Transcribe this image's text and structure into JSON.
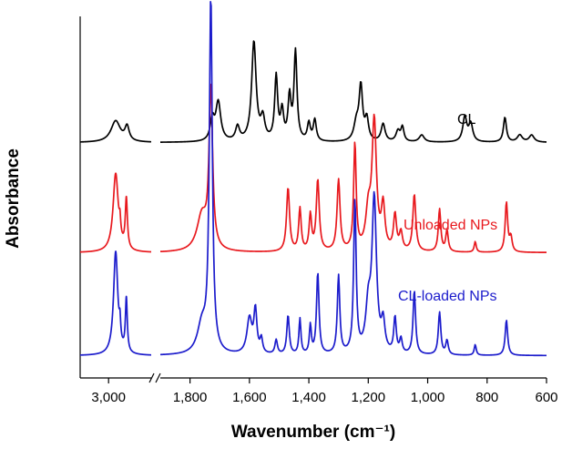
{
  "chart_data": {
    "type": "line",
    "title": "",
    "xlabel": "Wavenumber (cm⁻¹)",
    "ylabel": "Absorbance",
    "x_direction": "descending",
    "axis_break": {
      "between": [
        2700,
        1900
      ]
    },
    "segments": [
      {
        "name": "left",
        "xlim": [
          3200,
          2700
        ]
      },
      {
        "name": "right",
        "xlim": [
          1900,
          600
        ]
      }
    ],
    "x_ticks": [
      {
        "value": 3000,
        "label": "3,000"
      },
      {
        "value": 1800,
        "label": "1,800"
      },
      {
        "value": 1600,
        "label": "1,600"
      },
      {
        "value": 1400,
        "label": "1,400"
      },
      {
        "value": 1200,
        "label": "1,200"
      },
      {
        "value": 1000,
        "label": "1,000"
      },
      {
        "value": 800,
        "label": "800"
      },
      {
        "value": 600,
        "label": "600"
      }
    ],
    "y_units": "arbitrary, stacked with offsets",
    "ylim": [
      0,
      1
    ],
    "series": [
      {
        "name": "CL",
        "label": "CL",
        "color": "#000000",
        "baseline": 0.65,
        "peaks": [
          {
            "x": 2950,
            "h": 0.06,
            "w": 40
          },
          {
            "x": 2870,
            "h": 0.04,
            "w": 18
          },
          {
            "x": 1725,
            "h": 0.06,
            "w": 8
          },
          {
            "x": 1705,
            "h": 0.11,
            "w": 10
          },
          {
            "x": 1640,
            "h": 0.04,
            "w": 8
          },
          {
            "x": 1585,
            "h": 0.28,
            "w": 9
          },
          {
            "x": 1555,
            "h": 0.06,
            "w": 8
          },
          {
            "x": 1510,
            "h": 0.18,
            "w": 6
          },
          {
            "x": 1490,
            "h": 0.08,
            "w": 6
          },
          {
            "x": 1465,
            "h": 0.12,
            "w": 6
          },
          {
            "x": 1445,
            "h": 0.25,
            "w": 6
          },
          {
            "x": 1400,
            "h": 0.05,
            "w": 6
          },
          {
            "x": 1380,
            "h": 0.06,
            "w": 6
          },
          {
            "x": 1240,
            "h": 0.05,
            "w": 10
          },
          {
            "x": 1225,
            "h": 0.15,
            "w": 7
          },
          {
            "x": 1205,
            "h": 0.06,
            "w": 7
          },
          {
            "x": 1150,
            "h": 0.05,
            "w": 8
          },
          {
            "x": 1100,
            "h": 0.03,
            "w": 8
          },
          {
            "x": 1085,
            "h": 0.04,
            "w": 6
          },
          {
            "x": 1020,
            "h": 0.02,
            "w": 10
          },
          {
            "x": 875,
            "h": 0.07,
            "w": 8
          },
          {
            "x": 855,
            "h": 0.05,
            "w": 8
          },
          {
            "x": 740,
            "h": 0.07,
            "w": 6
          },
          {
            "x": 690,
            "h": 0.02,
            "w": 10
          },
          {
            "x": 650,
            "h": 0.02,
            "w": 10
          }
        ]
      },
      {
        "name": "Unloaded NPs",
        "label": "Unloaded NPs",
        "color": "#e8191e",
        "baseline": 0.34,
        "peaks": [
          {
            "x": 2950,
            "h": 0.22,
            "w": 22
          },
          {
            "x": 2875,
            "h": 0.14,
            "w": 9
          },
          {
            "x": 2920,
            "h": 0.04,
            "w": 6
          },
          {
            "x": 1760,
            "h": 0.1,
            "w": 20
          },
          {
            "x": 1730,
            "h": 0.45,
            "w": 7
          },
          {
            "x": 1470,
            "h": 0.18,
            "w": 6
          },
          {
            "x": 1430,
            "h": 0.12,
            "w": 5
          },
          {
            "x": 1395,
            "h": 0.1,
            "w": 5
          },
          {
            "x": 1370,
            "h": 0.2,
            "w": 6
          },
          {
            "x": 1300,
            "h": 0.2,
            "w": 6
          },
          {
            "x": 1245,
            "h": 0.3,
            "w": 5
          },
          {
            "x": 1200,
            "h": 0.1,
            "w": 10
          },
          {
            "x": 1180,
            "h": 0.36,
            "w": 9
          },
          {
            "x": 1150,
            "h": 0.12,
            "w": 7
          },
          {
            "x": 1110,
            "h": 0.1,
            "w": 6
          },
          {
            "x": 1090,
            "h": 0.05,
            "w": 6
          },
          {
            "x": 1045,
            "h": 0.16,
            "w": 6
          },
          {
            "x": 960,
            "h": 0.12,
            "w": 5
          },
          {
            "x": 935,
            "h": 0.06,
            "w": 5
          },
          {
            "x": 840,
            "h": 0.03,
            "w": 4
          },
          {
            "x": 735,
            "h": 0.14,
            "w": 5
          },
          {
            "x": 720,
            "h": 0.04,
            "w": 5
          }
        ]
      },
      {
        "name": "CL-loaded NPs",
        "label": "CL-loaded NPs",
        "color": "#1c1ccc",
        "baseline": 0.05,
        "peaks": [
          {
            "x": 2950,
            "h": 0.29,
            "w": 18
          },
          {
            "x": 2875,
            "h": 0.15,
            "w": 8
          },
          {
            "x": 2920,
            "h": 0.05,
            "w": 6
          },
          {
            "x": 1760,
            "h": 0.08,
            "w": 18
          },
          {
            "x": 1730,
            "h": 1.0,
            "w": 6
          },
          {
            "x": 1600,
            "h": 0.1,
            "w": 10
          },
          {
            "x": 1580,
            "h": 0.12,
            "w": 6
          },
          {
            "x": 1560,
            "h": 0.04,
            "w": 5
          },
          {
            "x": 1510,
            "h": 0.04,
            "w": 5
          },
          {
            "x": 1470,
            "h": 0.11,
            "w": 5
          },
          {
            "x": 1430,
            "h": 0.1,
            "w": 4
          },
          {
            "x": 1395,
            "h": 0.08,
            "w": 4
          },
          {
            "x": 1370,
            "h": 0.23,
            "w": 5
          },
          {
            "x": 1300,
            "h": 0.22,
            "w": 5
          },
          {
            "x": 1245,
            "h": 0.43,
            "w": 5
          },
          {
            "x": 1200,
            "h": 0.12,
            "w": 10
          },
          {
            "x": 1180,
            "h": 0.43,
            "w": 9
          },
          {
            "x": 1150,
            "h": 0.08,
            "w": 7
          },
          {
            "x": 1110,
            "h": 0.1,
            "w": 5
          },
          {
            "x": 1090,
            "h": 0.04,
            "w": 5
          },
          {
            "x": 1045,
            "h": 0.18,
            "w": 5
          },
          {
            "x": 960,
            "h": 0.12,
            "w": 5
          },
          {
            "x": 935,
            "h": 0.04,
            "w": 5
          },
          {
            "x": 840,
            "h": 0.03,
            "w": 4
          },
          {
            "x": 735,
            "h": 0.1,
            "w": 5
          }
        ]
      }
    ]
  }
}
